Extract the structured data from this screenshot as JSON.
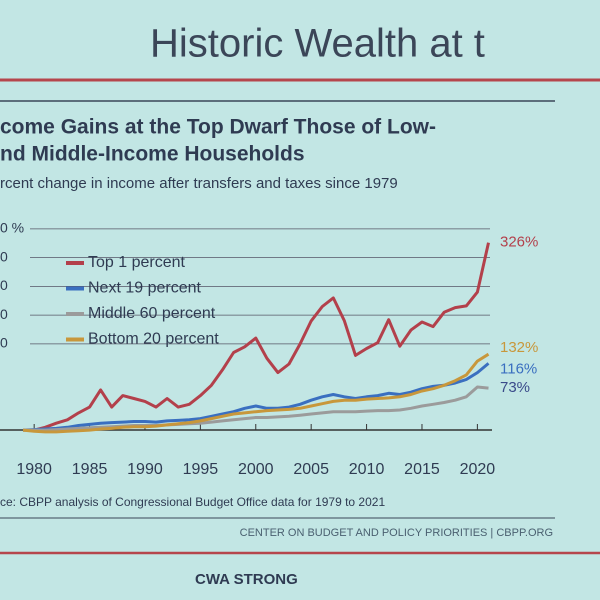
{
  "slide": {
    "title": "Historic Wealth at t",
    "footer": "CWA STRONG"
  },
  "chart_data": {
    "type": "line",
    "title": [
      "come Gains at the Top Dwarf Those of Low-",
      "nd Middle-Income Households"
    ],
    "subtitle": "rcent change in income after transfers and taxes since 1979",
    "source": "ce: CBPP analysis of Congressional Budget Office data for 1979 to 2021",
    "credit": "CENTER ON BUDGET AND POLICY PRIORITIES | CBPP.ORG",
    "x": [
      1979,
      1980,
      1981,
      1982,
      1983,
      1984,
      1985,
      1986,
      1987,
      1988,
      1989,
      1990,
      1991,
      1992,
      1993,
      1994,
      1995,
      1996,
      1997,
      1998,
      1999,
      2000,
      2001,
      2002,
      2003,
      2004,
      2005,
      2006,
      2007,
      2008,
      2009,
      2010,
      2011,
      2012,
      2013,
      2014,
      2015,
      2016,
      2017,
      2018,
      2019,
      2020,
      2021
    ],
    "xlim": [
      1978,
      2021.5
    ],
    "xticks": [
      1980,
      1985,
      1990,
      1995,
      2000,
      2005,
      2010,
      2015,
      2020
    ],
    "ylim": [
      -5,
      355
    ],
    "yticks": [
      {
        "value": 350,
        "label": "0 %"
      },
      {
        "value": 300,
        "label": "0"
      },
      {
        "value": 250,
        "label": "0"
      },
      {
        "value": 200,
        "label": "0"
      },
      {
        "value": 150,
        "label": "0"
      }
    ],
    "grid": true,
    "series": [
      {
        "name": "Top 1 percent",
        "color": "#b3404b",
        "values": [
          0,
          0,
          5,
          12,
          18,
          30,
          40,
          70,
          40,
          60,
          55,
          50,
          40,
          55,
          40,
          45,
          60,
          78,
          105,
          135,
          145,
          160,
          125,
          100,
          115,
          150,
          190,
          215,
          230,
          190,
          130,
          142,
          152,
          192,
          146,
          174,
          188,
          180,
          205,
          213,
          216,
          240,
          326
        ],
        "value_labels": [
          null,
          null,
          null,
          null,
          null,
          null,
          null,
          null,
          null,
          null,
          null,
          null,
          null,
          null,
          null,
          null,
          null,
          null,
          null,
          null,
          null,
          null,
          null,
          null,
          null,
          null,
          null,
          null,
          null,
          null,
          null,
          null,
          null,
          null,
          null,
          null,
          null,
          null,
          null,
          null,
          null,
          null,
          "326%"
        ]
      },
      {
        "name": "Next 19 percent",
        "color": "#3a6fc0",
        "values": [
          0,
          1,
          2,
          3,
          5,
          8,
          10,
          12,
          13,
          14,
          15,
          15,
          14,
          16,
          17,
          18,
          20,
          24,
          28,
          32,
          38,
          42,
          38,
          38,
          40,
          45,
          52,
          58,
          62,
          58,
          55,
          58,
          60,
          64,
          62,
          66,
          72,
          76,
          78,
          82,
          88,
          100,
          116
        ],
        "value_labels": [
          null,
          null,
          null,
          null,
          null,
          null,
          null,
          null,
          null,
          null,
          null,
          null,
          null,
          null,
          null,
          null,
          null,
          null,
          null,
          null,
          null,
          null,
          null,
          null,
          null,
          null,
          null,
          null,
          null,
          null,
          null,
          null,
          null,
          null,
          null,
          null,
          null,
          null,
          null,
          null,
          null,
          null,
          "116%"
        ]
      },
      {
        "name": "Middle 60 percent",
        "color": "#9b9b9b",
        "values": [
          0,
          0,
          0,
          1,
          2,
          3,
          4,
          5,
          6,
          7,
          8,
          8,
          8,
          9,
          10,
          11,
          12,
          14,
          16,
          18,
          20,
          22,
          22,
          23,
          24,
          26,
          28,
          30,
          32,
          32,
          32,
          33,
          34,
          34,
          35,
          38,
          42,
          45,
          48,
          52,
          58,
          75,
          73
        ],
        "value_labels": [
          null,
          null,
          null,
          null,
          null,
          null,
          null,
          null,
          null,
          null,
          null,
          null,
          null,
          null,
          null,
          null,
          null,
          null,
          null,
          null,
          null,
          null,
          null,
          null,
          null,
          null,
          null,
          null,
          null,
          null,
          null,
          null,
          null,
          null,
          null,
          null,
          null,
          null,
          null,
          null,
          null,
          null,
          "73%"
        ]
      },
      {
        "name": "Bottom 20 percent",
        "color": "#c8973b",
        "values": [
          0,
          -2,
          -3,
          -3,
          -2,
          -1,
          0,
          2,
          3,
          5,
          6,
          6,
          7,
          9,
          11,
          13,
          16,
          20,
          24,
          28,
          30,
          32,
          34,
          35,
          36,
          38,
          42,
          46,
          50,
          52,
          52,
          54,
          55,
          56,
          58,
          62,
          68,
          72,
          78,
          86,
          96,
          120,
          132
        ],
        "value_labels": [
          null,
          null,
          null,
          null,
          null,
          null,
          null,
          null,
          null,
          null,
          null,
          null,
          null,
          null,
          null,
          null,
          null,
          null,
          null,
          null,
          null,
          null,
          null,
          null,
          null,
          null,
          null,
          null,
          null,
          null,
          null,
          null,
          null,
          null,
          null,
          null,
          null,
          null,
          null,
          null,
          null,
          null,
          "132%"
        ]
      }
    ]
  }
}
